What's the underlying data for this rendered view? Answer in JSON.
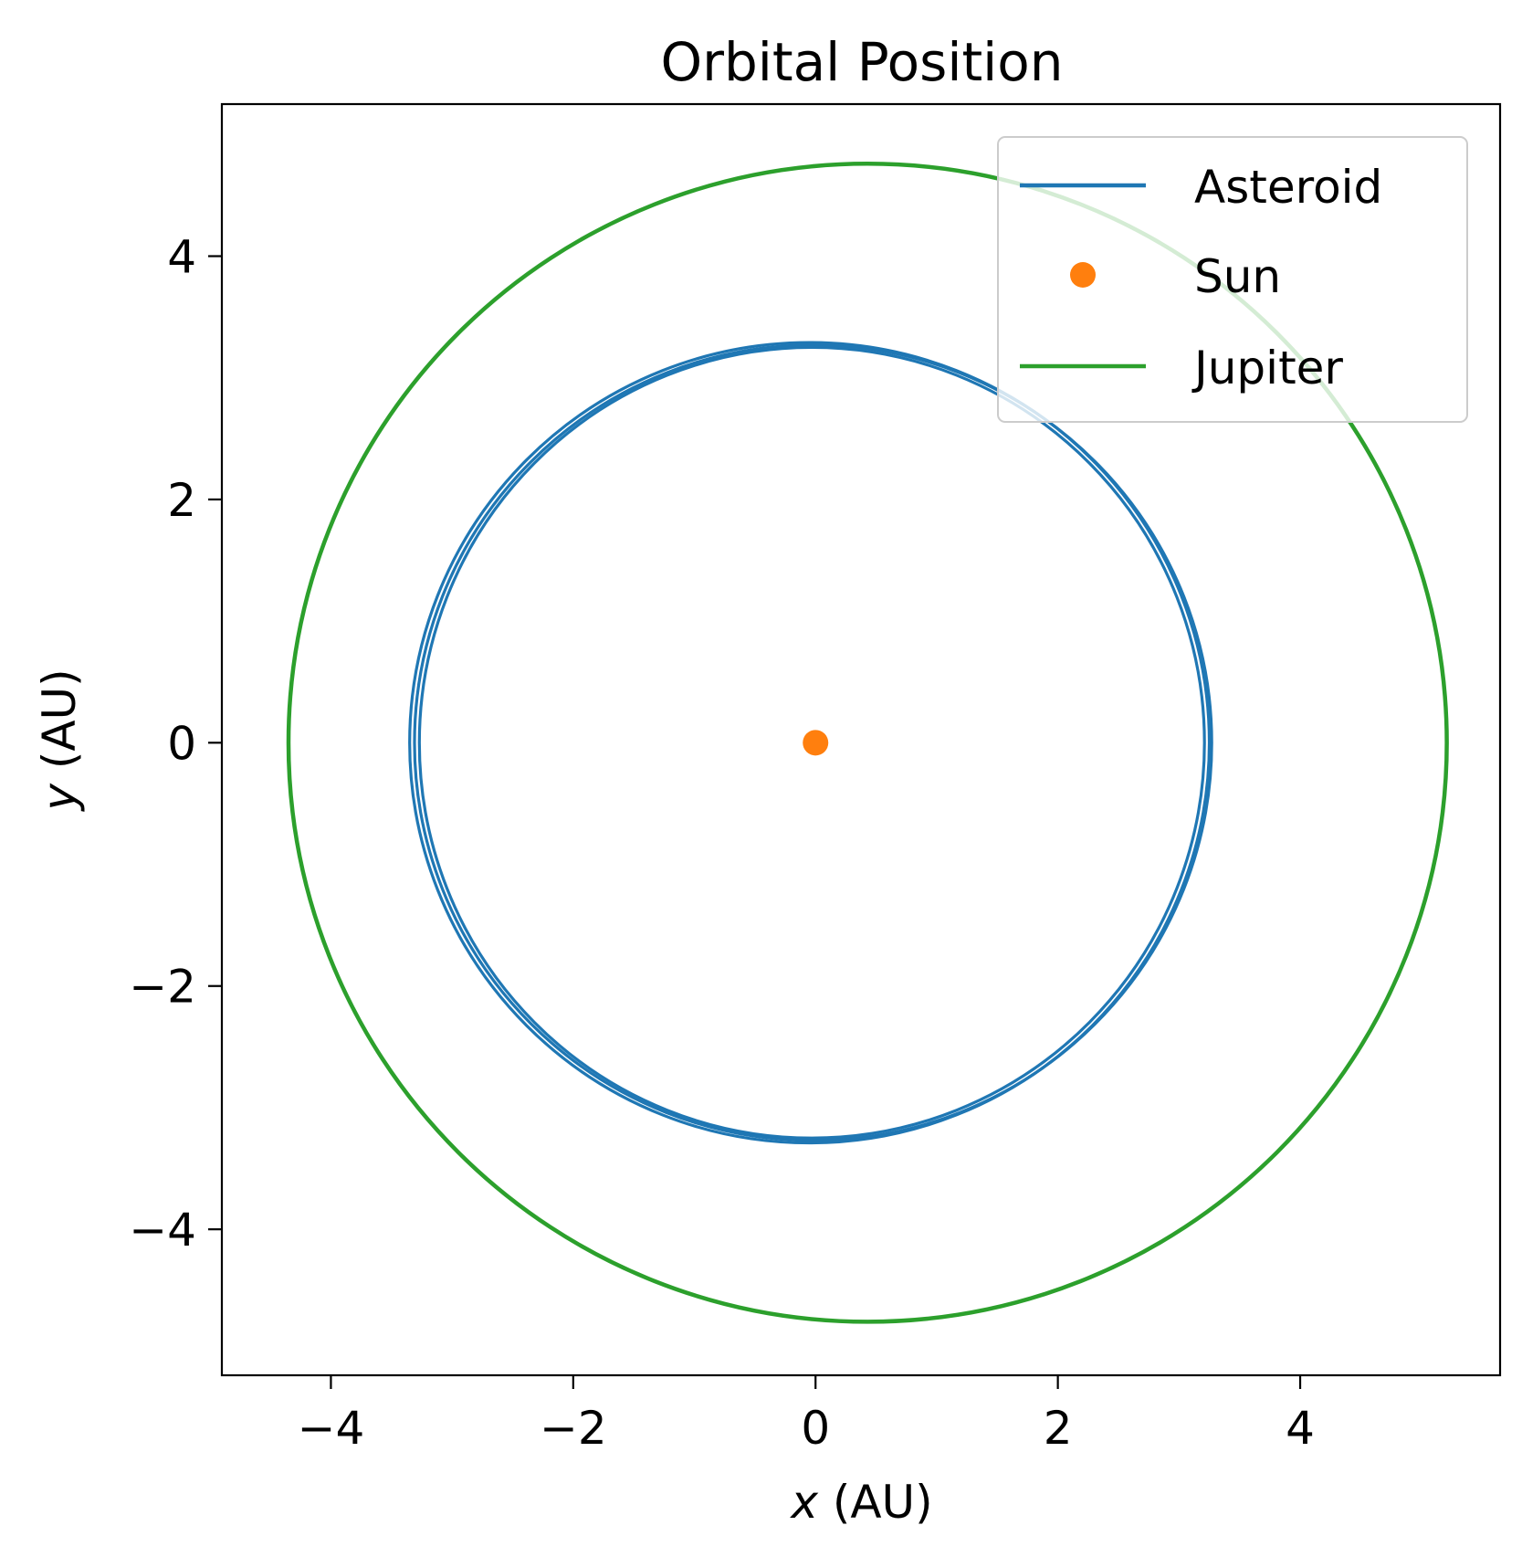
{
  "chart_data": {
    "type": "line",
    "title": "Orbital Position",
    "xlabel_var": "x",
    "xlabel_unit": " (AU)",
    "ylabel_var": "y",
    "ylabel_unit": " (AU)",
    "xlim": [
      -4.9,
      5.65
    ],
    "ylim": [
      -5.2,
      5.25
    ],
    "xticks": [
      -4,
      -2,
      0,
      2,
      4
    ],
    "yticks": [
      -4,
      -2,
      0,
      2,
      4
    ],
    "xtick_labels": [
      "−4",
      "−2",
      "0",
      "2",
      "4"
    ],
    "ytick_labels": [
      "−4",
      "−2",
      "0",
      "2",
      "4"
    ],
    "grid": false,
    "legend_position": "top-right",
    "series": [
      {
        "name": "Asteroid",
        "kind": "orbit",
        "color": "#1f77b4",
        "orbits": [
          {
            "center": [
              -0.02,
              0.0
            ],
            "rx": 3.29,
            "ry": 3.27
          },
          {
            "center": [
              -0.03,
              0.0
            ],
            "rx": 3.24,
            "ry": 3.25
          },
          {
            "center": [
              -0.05,
              0.0
            ],
            "rx": 3.3,
            "ry": 3.29
          }
        ]
      },
      {
        "name": "Sun",
        "kind": "point",
        "color": "#ff7f0e",
        "x": [
          0
        ],
        "y": [
          0
        ]
      },
      {
        "name": "Jupiter",
        "kind": "orbit",
        "color": "#2ca02c",
        "orbits": [
          {
            "center": [
              0.43,
              0.0
            ],
            "rx": 4.78,
            "ry": 4.76
          }
        ]
      }
    ]
  }
}
